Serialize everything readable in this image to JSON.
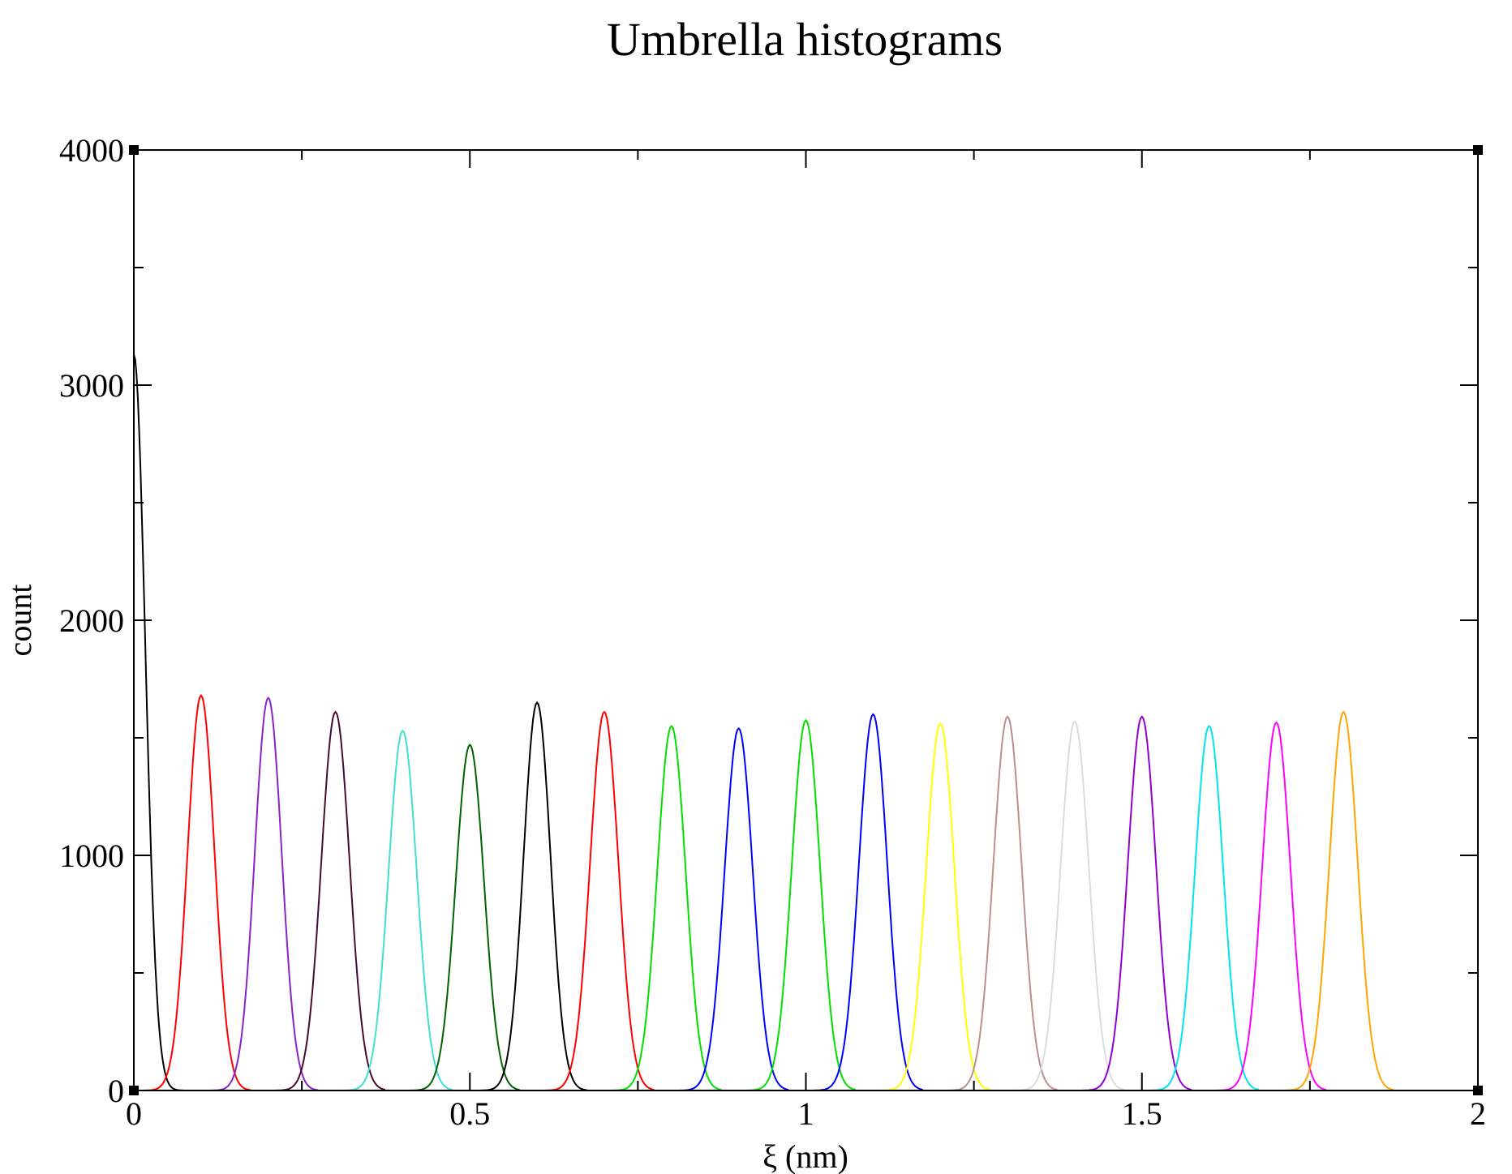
{
  "chart_data": {
    "type": "line",
    "title": "Umbrella histograms",
    "xlabel": "ξ (nm)",
    "ylabel": "count",
    "xlim": [
      0,
      2
    ],
    "ylim": [
      0,
      4000
    ],
    "x_ticks": [
      0,
      0.5,
      1,
      1.5,
      2
    ],
    "x_tick_labels": [
      "0",
      "0.5",
      "1",
      "1.5",
      "2"
    ],
    "y_ticks": [
      0,
      1000,
      2000,
      3000,
      4000
    ],
    "y_tick_labels": [
      "0",
      "1000",
      "2000",
      "3000",
      "4000"
    ],
    "x_minor_ticks": [
      0.25,
      0.75,
      1.25,
      1.75
    ],
    "y_minor_ticks": [
      500,
      1500,
      2500,
      3500
    ],
    "grid": false,
    "legend": "none",
    "series_shape": "gaussian",
    "series": [
      {
        "center": 0.0,
        "peak": 3130,
        "sigma": 0.017,
        "x_start": 0.0,
        "x_end": 0.075,
        "color": "#000000"
      },
      {
        "center": 0.1,
        "peak": 1680,
        "sigma": 0.02,
        "x_start": 0.0,
        "x_end": 0.175,
        "color": "#ff0000"
      },
      {
        "center": 0.2,
        "peak": 1670,
        "sigma": 0.02,
        "x_start": 0.1,
        "x_end": 0.275,
        "color": "#8b22c7"
      },
      {
        "center": 0.3,
        "peak": 1610,
        "sigma": 0.021,
        "x_start": 0.2,
        "x_end": 0.375,
        "color": "#4a0a2e"
      },
      {
        "center": 0.4,
        "peak": 1530,
        "sigma": 0.021,
        "x_start": 0.3,
        "x_end": 0.475,
        "color": "#40e0d0"
      },
      {
        "center": 0.5,
        "peak": 1470,
        "sigma": 0.021,
        "x_start": 0.4,
        "x_end": 0.575,
        "color": "#006400"
      },
      {
        "center": 0.6,
        "peak": 1650,
        "sigma": 0.02,
        "x_start": 0.5,
        "x_end": 0.675,
        "color": "#000000"
      },
      {
        "center": 0.7,
        "peak": 1610,
        "sigma": 0.021,
        "x_start": 0.6,
        "x_end": 0.775,
        "color": "#ff0000"
      },
      {
        "center": 0.8,
        "peak": 1550,
        "sigma": 0.021,
        "x_start": 0.7,
        "x_end": 0.875,
        "color": "#00e000"
      },
      {
        "center": 0.9,
        "peak": 1540,
        "sigma": 0.021,
        "x_start": 0.8,
        "x_end": 0.975,
        "color": "#0000ff"
      },
      {
        "center": 1.0,
        "peak": 1575,
        "sigma": 0.021,
        "x_start": 0.9,
        "x_end": 1.075,
        "color": "#00e000"
      },
      {
        "center": 1.1,
        "peak": 1600,
        "sigma": 0.021,
        "x_start": 1.0,
        "x_end": 1.175,
        "color": "#0000ff"
      },
      {
        "center": 1.2,
        "peak": 1560,
        "sigma": 0.021,
        "x_start": 1.1,
        "x_end": 1.275,
        "color": "#ffff00"
      },
      {
        "center": 1.3,
        "peak": 1590,
        "sigma": 0.021,
        "x_start": 1.2,
        "x_end": 1.375,
        "color": "#bc8f8f"
      },
      {
        "center": 1.4,
        "peak": 1570,
        "sigma": 0.021,
        "x_start": 1.3,
        "x_end": 1.475,
        "color": "#dcdcdc"
      },
      {
        "center": 1.5,
        "peak": 1590,
        "sigma": 0.021,
        "x_start": 1.4,
        "x_end": 1.575,
        "color": "#9400d3"
      },
      {
        "center": 1.6,
        "peak": 1550,
        "sigma": 0.021,
        "x_start": 1.5,
        "x_end": 1.675,
        "color": "#00e5ee"
      },
      {
        "center": 1.7,
        "peak": 1565,
        "sigma": 0.021,
        "x_start": 1.6,
        "x_end": 1.775,
        "color": "#ff00ff"
      },
      {
        "center": 1.8,
        "peak": 1610,
        "sigma": 0.021,
        "x_start": 1.7,
        "x_end": 1.875,
        "color": "#ffa500"
      }
    ]
  }
}
